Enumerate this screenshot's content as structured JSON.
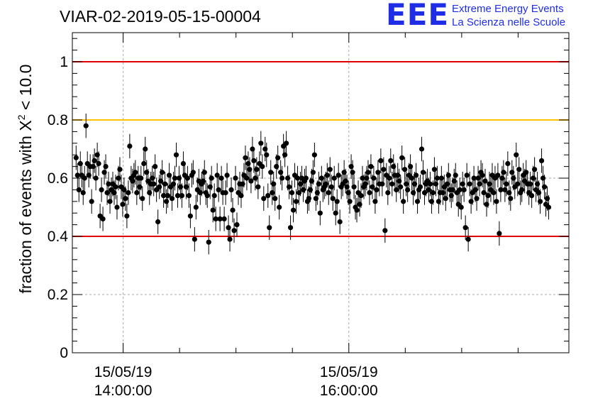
{
  "title": "VIAR-02-2019-05-15-00004",
  "logo": {
    "mark": "EEE",
    "line1": "Extreme Energy Events",
    "line2": "La Scienza nelle Scuole",
    "color": "#1f2ee6"
  },
  "chart_data": {
    "type": "scatter",
    "title": "VIAR-02-2019-05-15-00004",
    "ylabel_text": "fraction of events with ",
    "ylabel_symbol": "X",
    "ylabel_sup": "2",
    "ylabel_suffix": " < 10.0",
    "xlabel": "",
    "xlim": [
      "2019-05-15 13:33:00",
      "2019-05-15 17:57:00"
    ],
    "ylim": [
      0,
      1.1
    ],
    "y_ticks": [
      {
        "value": 0,
        "label": "0"
      },
      {
        "value": 0.2,
        "label": "0.2"
      },
      {
        "value": 0.4,
        "label": "0.4"
      },
      {
        "value": 0.6,
        "label": "0.6"
      },
      {
        "value": 0.8,
        "label": "0.8"
      },
      {
        "value": 1,
        "label": "1"
      }
    ],
    "x_ticks": [
      {
        "time": "2019-05-15 14:00:00",
        "label_date": "15/05/19",
        "label_time": "14:00:00"
      },
      {
        "time": "2019-05-15 16:00:00",
        "label_date": "15/05/19",
        "label_time": "16:00:00"
      }
    ],
    "x_minor_minutes": 30,
    "grid": true,
    "reference_lines": [
      {
        "y": 1.0,
        "color": "#e00000"
      },
      {
        "y": 0.8,
        "color": "#ffc000"
      },
      {
        "y": 0.4,
        "color": "#e00000"
      }
    ],
    "marker_color": "#000000",
    "x_start": "2019-05-15 13:35:00",
    "x_step_minutes": 0.75,
    "y_error": 0.042,
    "values": [
      0.67,
      0.61,
      0.56,
      0.65,
      0.61,
      0.55,
      0.6,
      0.78,
      0.65,
      0.61,
      0.64,
      0.52,
      0.64,
      0.66,
      0.6,
      0.68,
      0.65,
      0.47,
      0.56,
      0.46,
      0.62,
      0.64,
      0.55,
      0.58,
      0.52,
      0.56,
      0.58,
      0.55,
      0.57,
      0.5,
      0.6,
      0.63,
      0.57,
      0.51,
      0.56,
      0.53,
      0.47,
      0.55,
      0.71,
      0.6,
      0.59,
      0.61,
      0.62,
      0.55,
      0.6,
      0.57,
      0.6,
      0.53,
      0.65,
      0.7,
      0.62,
      0.59,
      0.55,
      0.58,
      0.6,
      0.58,
      0.64,
      0.56,
      0.45,
      0.57,
      0.59,
      0.62,
      0.54,
      0.58,
      0.52,
      0.54,
      0.61,
      0.57,
      0.53,
      0.58,
      0.6,
      0.68,
      0.54,
      0.6,
      0.57,
      0.54,
      0.65,
      0.61,
      0.57,
      0.6,
      0.54,
      0.47,
      0.61,
      0.62,
      0.39,
      0.5,
      0.56,
      0.59,
      0.55,
      0.58,
      0.59,
      0.62,
      0.55,
      0.54,
      0.38,
      0.57,
      0.6,
      0.49,
      0.54,
      0.46,
      0.61,
      0.56,
      0.46,
      0.6,
      0.55,
      0.46,
      0.55,
      0.61,
      0.43,
      0.39,
      0.56,
      0.49,
      0.42,
      0.6,
      0.44,
      0.55,
      0.58,
      0.54,
      0.58,
      0.61,
      0.67,
      0.6,
      0.65,
      0.63,
      0.59,
      0.7,
      0.66,
      0.6,
      0.63,
      0.57,
      0.65,
      0.72,
      0.64,
      0.53,
      0.7,
      0.68,
      0.54,
      0.43,
      0.62,
      0.55,
      0.58,
      0.53,
      0.64,
      0.67,
      0.5,
      0.62,
      0.6,
      0.71,
      0.68,
      0.72,
      0.6,
      0.57,
      0.43,
      0.55,
      0.49,
      0.61,
      0.52,
      0.6,
      0.55,
      0.58,
      0.6,
      0.56,
      0.59,
      0.6,
      0.52,
      0.53,
      0.56,
      0.59,
      0.62,
      0.68,
      0.53,
      0.55,
      0.58,
      0.48,
      0.6,
      0.56,
      0.57,
      0.58,
      0.61,
      0.55,
      0.63,
      0.57,
      0.53,
      0.6,
      0.48,
      0.52,
      0.61,
      0.45,
      0.57,
      0.58,
      0.62,
      0.59,
      0.57,
      0.55,
      0.52,
      0.64,
      0.62,
      0.57,
      0.5,
      0.49,
      0.55,
      0.51,
      0.54,
      0.6,
      0.57,
      0.58,
      0.6,
      0.62,
      0.55,
      0.64,
      0.57,
      0.6,
      0.52,
      0.56,
      0.62,
      0.58,
      0.66,
      0.58,
      0.63,
      0.42,
      0.61,
      0.55,
      0.6,
      0.66,
      0.58,
      0.64,
      0.61,
      0.56,
      0.61,
      0.59,
      0.57,
      0.67,
      0.52,
      0.63,
      0.58,
      0.56,
      0.61,
      0.64,
      0.6,
      0.55,
      0.58,
      0.61,
      0.52,
      0.56,
      0.57,
      0.7,
      0.62,
      0.55,
      0.58,
      0.59,
      0.56,
      0.58,
      0.52,
      0.55,
      0.63,
      0.58,
      0.6,
      0.52,
      0.55,
      0.6,
      0.55,
      0.57,
      0.53,
      0.58,
      0.61,
      0.56,
      0.54,
      0.56,
      0.59,
      0.61,
      0.55,
      0.51,
      0.56,
      0.5,
      0.58,
      0.56,
      0.43,
      0.61,
      0.39,
      0.58,
      0.52,
      0.55,
      0.6,
      0.56,
      0.53,
      0.6,
      0.58,
      0.62,
      0.61,
      0.55,
      0.59,
      0.51,
      0.54,
      0.58,
      0.56,
      0.61,
      0.55,
      0.6,
      0.52,
      0.61,
      0.41,
      0.56,
      0.6,
      0.62,
      0.56,
      0.58,
      0.65,
      0.55,
      0.53,
      0.62,
      0.6,
      0.57,
      0.68,
      0.58,
      0.63,
      0.55,
      0.56,
      0.61,
      0.59,
      0.62,
      0.58,
      0.55,
      0.58,
      0.54,
      0.6,
      0.63,
      0.56,
      0.58,
      0.55,
      0.52,
      0.66,
      0.6,
      0.57,
      0.51,
      0.53,
      0.5
    ]
  }
}
